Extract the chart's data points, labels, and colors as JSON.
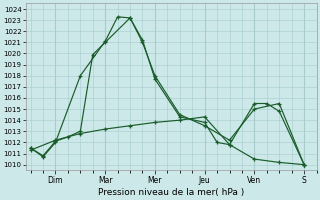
{
  "xlabel": "Pression niveau de la mer( hPa )",
  "ylim": [
    1009.5,
    1024.5
  ],
  "yticks": [
    1010,
    1011,
    1012,
    1013,
    1014,
    1015,
    1016,
    1017,
    1018,
    1019,
    1020,
    1021,
    1022,
    1023,
    1024
  ],
  "bg_color": "#cce8e8",
  "grid_color": "#a8cccc",
  "line_color": "#1a5c2a",
  "day_labels": [
    "Dim",
    "Mar",
    "Mer",
    "Jeu",
    "Ven",
    "S"
  ],
  "day_positions": [
    1,
    3,
    5,
    7,
    9,
    11
  ],
  "line1_x": [
    0,
    0.5,
    1,
    2,
    3,
    3.5,
    4,
    4.5,
    5,
    6,
    7,
    7.5,
    8,
    9,
    9.5,
    10,
    11
  ],
  "line1_y": [
    1011.5,
    1010.7,
    1012.0,
    1018.0,
    1021.1,
    1023.3,
    1023.2,
    1021.2,
    1017.7,
    1014.3,
    1013.8,
    1012.0,
    1011.8,
    1015.5,
    1015.5,
    1014.8,
    1010.0
  ],
  "line2_x": [
    0,
    0.5,
    1,
    1.5,
    2,
    2.5,
    3,
    4,
    4.5,
    5,
    6,
    7,
    8,
    9,
    10,
    11
  ],
  "line2_y": [
    1011.5,
    1010.8,
    1012.1,
    1012.5,
    1013.0,
    1019.9,
    1021.0,
    1023.2,
    1021.0,
    1018.0,
    1014.5,
    1013.5,
    1012.2,
    1015.0,
    1015.5,
    1010.0
  ],
  "line3_x": [
    0,
    1,
    2,
    3,
    4,
    5,
    6,
    7,
    8,
    9,
    10,
    11
  ],
  "line3_y": [
    1011.3,
    1012.2,
    1012.8,
    1013.2,
    1013.5,
    1013.8,
    1014.0,
    1014.3,
    1011.8,
    1010.5,
    1010.2,
    1010.0
  ]
}
